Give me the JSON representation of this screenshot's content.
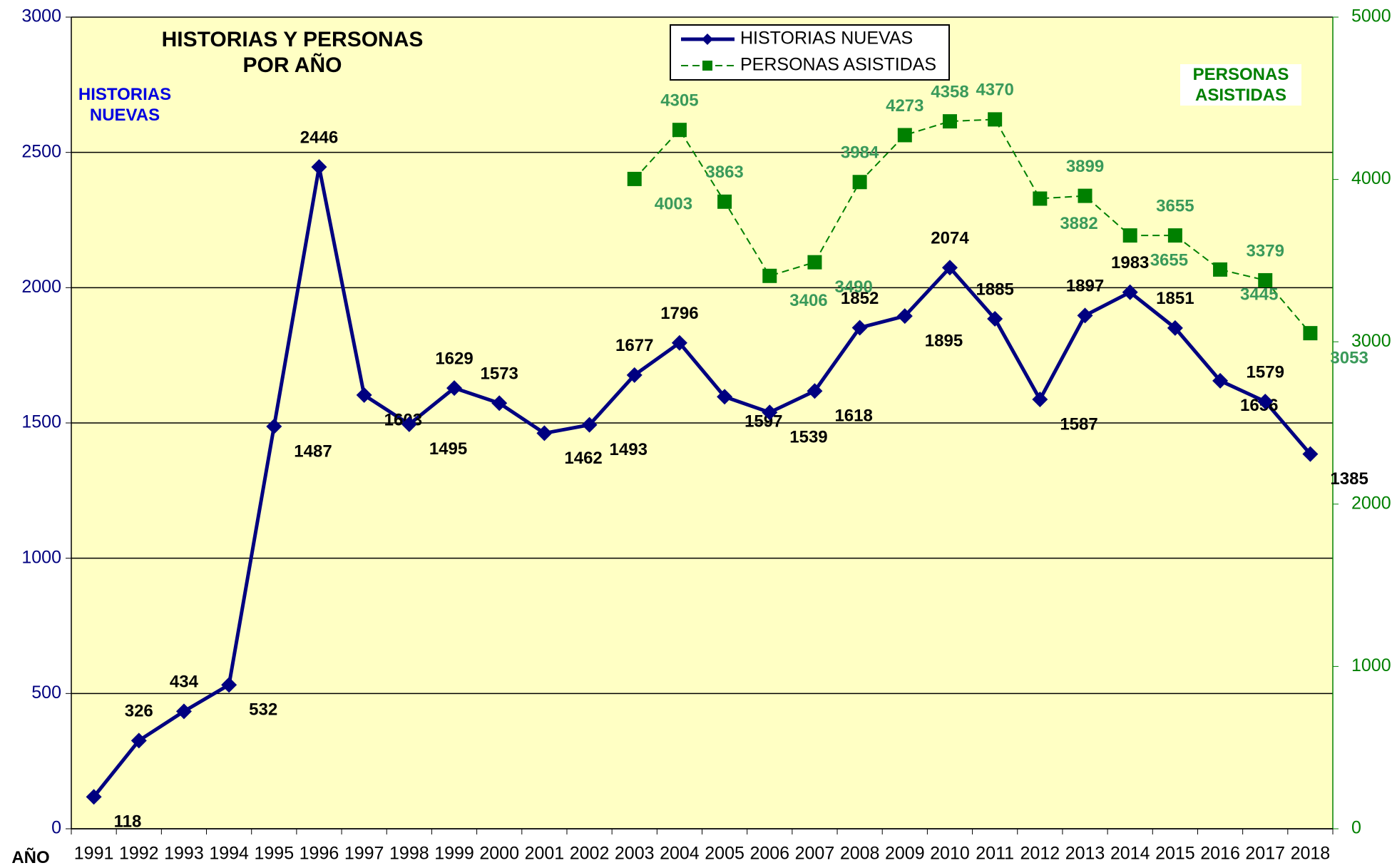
{
  "chart_data": {
    "type": "line",
    "title": "HISTORIAS Y PERSONAS POR AÑO",
    "x_label": "AÑO",
    "y_label": "HISTORIAS NUEVAS",
    "y2_label": "PERSONAS ASISTIDAS",
    "categories": [
      "1991",
      "1992",
      "1993",
      "1994",
      "1995",
      "1996",
      "1997",
      "1998",
      "1999",
      "2000",
      "2001",
      "2002",
      "2003",
      "2004",
      "2005",
      "2006",
      "2007",
      "2008",
      "2009",
      "2010",
      "2011",
      "2012",
      "2013",
      "2014",
      "2015",
      "2016",
      "2017",
      "2018"
    ],
    "series": [
      {
        "name": "HISTORIAS NUEVAS",
        "color": "#000080",
        "values": [
          118,
          326,
          434,
          532,
          1487,
          2446,
          1603,
          1495,
          1629,
          1573,
          1462,
          1493,
          1677,
          1796,
          1597,
          1539,
          1618,
          1852,
          1895,
          2074,
          1885,
          1587,
          1897,
          1983,
          1851,
          1656,
          1579,
          1385
        ]
      },
      {
        "name": "PERSONAS ASISTIDAS",
        "color": "#008000",
        "axis": "y2",
        "values": [
          null,
          null,
          null,
          null,
          null,
          null,
          null,
          null,
          null,
          null,
          null,
          null,
          4003,
          4305,
          3863,
          3406,
          3490,
          3984,
          4273,
          4358,
          4370,
          3882,
          3899,
          3655,
          3655,
          3445,
          3379,
          3053
        ]
      }
    ],
    "ylim": [
      0,
      3000
    ],
    "yticks": [
      0,
      500,
      1000,
      1500,
      2000,
      2500,
      3000
    ],
    "y2lim": [
      0,
      5000
    ],
    "y2ticks": [
      0,
      1000,
      2000,
      3000,
      4000,
      5000
    ],
    "grid": true,
    "legend": "top"
  }
}
